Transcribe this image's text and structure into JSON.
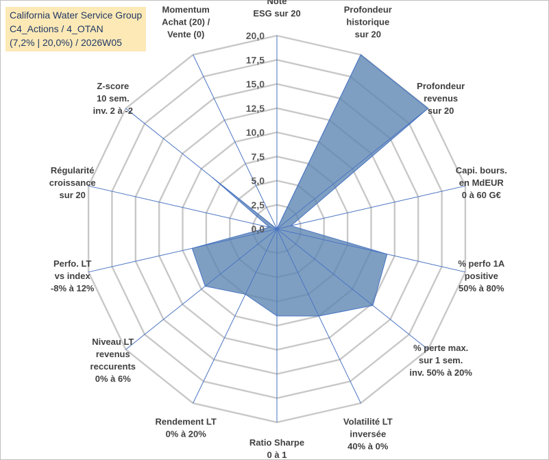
{
  "title_lines": [
    "California Water Service Group",
    "C4_Actions / 4_OTAN",
    "(7,2% | 20,0%) / 2026W05"
  ],
  "chart_data": {
    "type": "radar",
    "title": "California Water Service Group",
    "rlim": [
      0,
      20
    ],
    "tick_values": [
      0,
      2.5,
      5,
      7.5,
      10,
      12.5,
      15,
      17.5,
      20
    ],
    "tick_labels": [
      "0,0",
      "2,5",
      "5,0",
      "7,5",
      "10,0",
      "12,5",
      "15,0",
      "17,5",
      "20,0"
    ],
    "grid": true,
    "axes": [
      [
        "Note",
        "ESG sur 20"
      ],
      [
        "Profondeur",
        "historique",
        "sur 20"
      ],
      [
        "Profondeur",
        "revenus",
        "sur 20"
      ],
      [
        "Capi. bours.",
        "en MdEUR",
        "0 à 60 G€"
      ],
      [
        "% perfo 1A",
        "positive",
        "50% à 80%"
      ],
      [
        "% perte max.",
        "sur 1 sem.",
        "inv. 50% à 20%"
      ],
      [
        "Volatilité LT",
        "inversée",
        "40% à 0%"
      ],
      [
        "Ratio Sharpe",
        "0 à 1"
      ],
      [
        "Rendement LT",
        "0% à 20%"
      ],
      [
        "Niveau LT",
        "revenus",
        "reccurents",
        "0% à 6%"
      ],
      [
        "Perfo. LT",
        "vs index",
        "-8% à 12%"
      ],
      [
        "Régularité",
        "croissance",
        "sur 20"
      ],
      [
        "Z-score",
        "10 sem.",
        "inv. 2 à -2"
      ],
      [
        "Momentum",
        "Achat (20) /",
        "Vente (0)"
      ]
    ],
    "series": [
      {
        "color": "#5b84b1",
        "values": [
          0,
          20,
          20,
          1.5,
          11.7,
          12.7,
          10.0,
          9.0,
          7.5,
          9.5,
          9.0,
          0.8,
          8.6,
          0
        ]
      }
    ]
  }
}
